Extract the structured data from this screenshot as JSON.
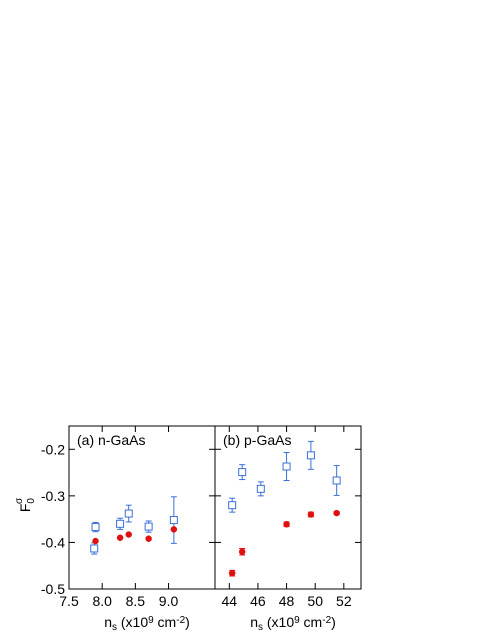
{
  "chart_data": [
    {
      "type": "scatter",
      "panel_label": "(a) n-GaAs",
      "xlabel": {
        "base": "n",
        "sub": "s",
        "text": " (x10",
        "sup": "9",
        "text2": " cm",
        "sup2": "-2",
        "text3": ")"
      },
      "ylabel": {
        "base": "F",
        "sub": "0",
        "sup": "σ"
      },
      "xlim": [
        7.5,
        9.7
      ],
      "ylim": [
        -0.5,
        -0.15
      ],
      "x_ticks": [
        7.5,
        8.0,
        8.5,
        9.0
      ],
      "x_tick_labels": [
        "7.5",
        "8.0",
        "8.5",
        "9.0"
      ],
      "y_ticks": [
        -0.5,
        -0.4,
        -0.3,
        -0.2
      ],
      "y_tick_labels": [
        "-0.5",
        "-0.4",
        "-0.3",
        "-0.2"
      ],
      "series": [
        {
          "marker": "open-square",
          "color": "#3a6fd8",
          "points": [
            {
              "x": 7.9,
              "y": -0.367,
              "err": 0.01
            },
            {
              "x": 7.88,
              "y": -0.413,
              "err": 0.012
            },
            {
              "x": 8.27,
              "y": -0.36,
              "err": 0.012
            },
            {
              "x": 8.4,
              "y": -0.338,
              "err": 0.018
            },
            {
              "x": 8.7,
              "y": -0.366,
              "err": 0.012
            },
            {
              "x": 9.08,
              "y": -0.352,
              "err": 0.05
            }
          ]
        },
        {
          "marker": "filled-circle",
          "color": "#e01010",
          "points": [
            {
              "x": 7.9,
              "y": -0.397,
              "err": 0
            },
            {
              "x": 8.27,
              "y": -0.39,
              "err": 0
            },
            {
              "x": 8.4,
              "y": -0.383,
              "err": 0
            },
            {
              "x": 8.7,
              "y": -0.392,
              "err": 0
            },
            {
              "x": 9.08,
              "y": -0.372,
              "err": 0
            }
          ]
        }
      ]
    },
    {
      "type": "scatter",
      "panel_label": "(b) p-GaAs",
      "xlabel": {
        "base": "n",
        "sub": "s",
        "text": " (x10",
        "sup": "9",
        "text2": " cm",
        "sup2": "-2",
        "text3": ")"
      },
      "xlim": [
        43,
        53.2
      ],
      "ylim": [
        -0.5,
        -0.15
      ],
      "x_ticks": [
        44,
        46,
        48,
        50,
        52
      ],
      "x_tick_labels": [
        "44",
        "46",
        "48",
        "50",
        "52"
      ],
      "series": [
        {
          "marker": "open-square",
          "color": "#3a6fd8",
          "points": [
            {
              "x": 44.2,
              "y": -0.32,
              "err": 0.015
            },
            {
              "x": 44.9,
              "y": -0.249,
              "err": 0.016
            },
            {
              "x": 46.2,
              "y": -0.285,
              "err": 0.015
            },
            {
              "x": 48.0,
              "y": -0.237,
              "err": 0.03
            },
            {
              "x": 49.7,
              "y": -0.213,
              "err": 0.03
            },
            {
              "x": 51.5,
              "y": -0.267,
              "err": 0.032
            }
          ]
        },
        {
          "marker": "filled-circle",
          "color": "#e01010",
          "points": [
            {
              "x": 44.2,
              "y": -0.466,
              "err": 0.006
            },
            {
              "x": 44.9,
              "y": -0.42,
              "err": 0.007
            },
            {
              "x": 48.0,
              "y": -0.361,
              "err": 0.005
            },
            {
              "x": 49.7,
              "y": -0.34,
              "err": 0.005
            },
            {
              "x": 51.5,
              "y": -0.337,
              "err": 0.003
            }
          ]
        }
      ]
    }
  ]
}
